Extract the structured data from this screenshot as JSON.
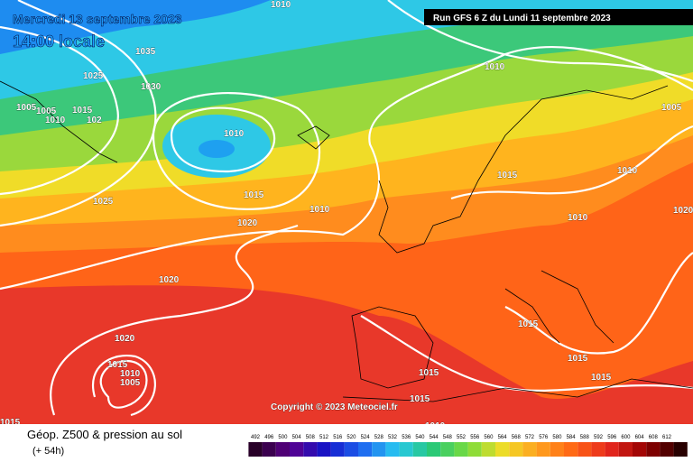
{
  "header": {
    "date": "Mercredi 13 septembre 2023",
    "time": "14:00 locale",
    "run": "Run GFS 6 Z du Lundi 11 septembre 2023"
  },
  "copyright": "Copyright © 2023 Meteociel.fr",
  "footer": {
    "title": "Géop. Z500 & pression au sol",
    "lead": "(+ 54h)"
  },
  "isobar_labels": [
    "1010",
    "1035",
    "1025",
    "1030",
    "1005",
    "1005",
    "1010",
    "1015",
    "102",
    "1010",
    "1010",
    "1005",
    "1015",
    "1010",
    "1015",
    "1025",
    "1020",
    "1010",
    "1010",
    "1020",
    "1020",
    "1015",
    "1010",
    "1005",
    "1015",
    "1015",
    "1015",
    "1015",
    "1015",
    "1015",
    "1010",
    "1020"
  ],
  "legend": {
    "labels": [
      "492",
      "496",
      "500",
      "504",
      "508",
      "512",
      "516",
      "520",
      "524",
      "528",
      "532",
      "536",
      "540",
      "544",
      "548",
      "552",
      "556",
      "560",
      "564",
      "568",
      "572",
      "576",
      "580",
      "584",
      "588",
      "592",
      "596",
      "600",
      "604",
      "608",
      "612"
    ]
  }
}
